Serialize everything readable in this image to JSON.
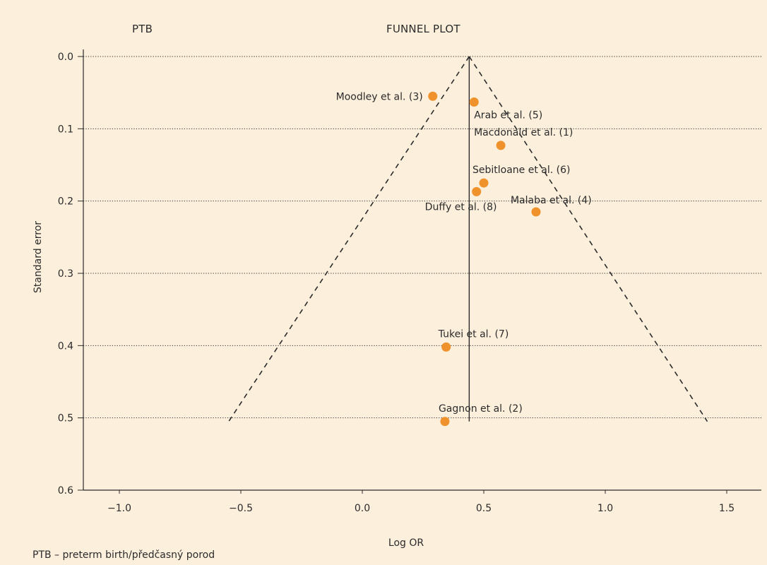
{
  "header": {
    "left_title": "PTB",
    "center_title": "FUNNEL PLOT"
  },
  "footnote": "PTB – preterm birth/předčasný porod",
  "colors": {
    "background": "#fcefdc",
    "point": "#f0922b",
    "ink": "#2b2b2b"
  },
  "chart_data": {
    "type": "scatter",
    "title": "FUNNEL PLOT",
    "xlabel": "Log OR",
    "ylabel": "Standard error",
    "xlim": [
      -1.2,
      1.7
    ],
    "ylim": [
      0.6,
      0.0
    ],
    "y_inverted": true,
    "x_ticks": [
      -1.0,
      -0.5,
      0.0,
      0.5,
      1.0,
      1.5
    ],
    "x_tick_labels": [
      "−1.0",
      "−0.5",
      "0.0",
      "0.5",
      "1.0",
      "1.5"
    ],
    "y_ticks": [
      0.0,
      0.1,
      0.2,
      0.3,
      0.4,
      0.5,
      0.6
    ],
    "y_tick_labels": [
      "0.0",
      "0.1",
      "0.2",
      "0.3",
      "0.4",
      "0.5",
      "0.6"
    ],
    "grid": "horizontal dotted",
    "pooled_estimate": 0.44,
    "funnel": {
      "apex": [
        0.44,
        0.0
      ],
      "left_base": [
        -0.55,
        0.505
      ],
      "right_base": [
        1.42,
        0.505
      ],
      "style": "dashed"
    },
    "points": [
      {
        "label": "Moodley et al. (3)",
        "x": 0.29,
        "y": 0.055,
        "label_side": "left"
      },
      {
        "label": "Arab et al. (5)",
        "x": 0.46,
        "y": 0.063,
        "label_side": "below"
      },
      {
        "label": "Macdonald et al. (1)",
        "x": 0.57,
        "y": 0.123,
        "label_side": "above"
      },
      {
        "label": "Sebitloane et al. (6)",
        "x": 0.5,
        "y": 0.175,
        "label_side": "above"
      },
      {
        "label": "Duffy et al. (8)",
        "x": 0.47,
        "y": 0.187,
        "label_side": "below"
      },
      {
        "label": "Malaba et al. (4)",
        "x": 0.715,
        "y": 0.215,
        "label_side": "above"
      },
      {
        "label": "Tukei et al. (7)",
        "x": 0.345,
        "y": 0.402,
        "label_side": "above"
      },
      {
        "label": "Gagnon et al. (2)",
        "x": 0.34,
        "y": 0.505,
        "label_side": "above"
      }
    ]
  }
}
